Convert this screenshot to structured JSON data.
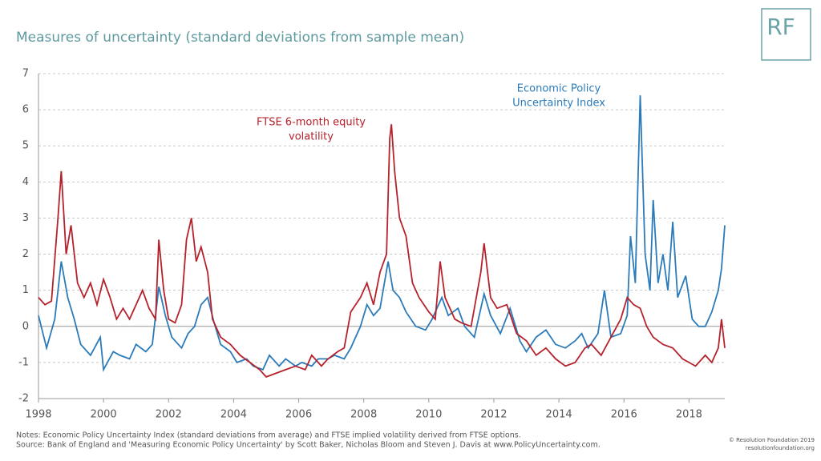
{
  "chart_data": {
    "type": "line",
    "title": "Measures of uncertainty (standard deviations from sample mean)",
    "logo": "RF",
    "xlim": [
      1998,
      2019.1
    ],
    "xticks": [
      1998,
      2000,
      2002,
      2004,
      2006,
      2008,
      2010,
      2012,
      2014,
      2016,
      2018
    ],
    "ylim": [
      -2,
      7
    ],
    "yticks": [
      -2,
      -1,
      0,
      1,
      2,
      3,
      4,
      5,
      6,
      7
    ],
    "grid": true,
    "series": [
      {
        "color": "#2b7bba",
        "x": [
          1998.0,
          1998.25,
          1998.5,
          1998.7,
          1998.9,
          1999.1,
          1999.3,
          1999.6,
          1999.9,
          2000.0,
          2000.3,
          2000.5,
          2000.8,
          2001.0,
          2001.3,
          2001.5,
          2001.7,
          2001.9,
          2002.1,
          2002.4,
          2002.6,
          2002.8,
          2003.0,
          2003.2,
          2003.4,
          2003.6,
          2003.9,
          2004.1,
          2004.4,
          2004.6,
          2004.9,
          2005.1,
          2005.4,
          2005.6,
          2005.9,
          2006.1,
          2006.4,
          2006.6,
          2006.9,
          2007.1,
          2007.4,
          2007.6,
          2007.9,
          2008.1,
          2008.3,
          2008.5,
          2008.75,
          2008.9,
          2009.1,
          2009.3,
          2009.6,
          2009.9,
          2010.1,
          2010.4,
          2010.6,
          2010.9,
          2011.1,
          2011.4,
          2011.7,
          2011.9,
          2012.2,
          2012.5,
          2012.8,
          2013.0,
          2013.3,
          2013.6,
          2013.9,
          2014.2,
          2014.5,
          2014.7,
          2014.9,
          2015.2,
          2015.4,
          2015.6,
          2015.9,
          2016.1,
          2016.2,
          2016.35,
          2016.5,
          2016.65,
          2016.8,
          2016.9,
          2017.05,
          2017.2,
          2017.35,
          2017.5,
          2017.65,
          2017.9,
          2018.1,
          2018.3,
          2018.5,
          2018.7,
          2018.9,
          2019.0,
          2019.1
        ],
        "values": [
          0.3,
          -0.6,
          0.2,
          1.8,
          0.8,
          0.2,
          -0.5,
          -0.8,
          -0.3,
          -1.2,
          -0.7,
          -0.8,
          -0.9,
          -0.5,
          -0.7,
          -0.5,
          1.1,
          0.3,
          -0.3,
          -0.6,
          -0.2,
          0.0,
          0.6,
          0.8,
          0.1,
          -0.5,
          -0.7,
          -1.0,
          -0.9,
          -1.1,
          -1.2,
          -0.8,
          -1.1,
          -0.9,
          -1.1,
          -1.0,
          -1.1,
          -0.9,
          -0.9,
          -0.8,
          -0.9,
          -0.6,
          0.0,
          0.6,
          0.3,
          0.5,
          1.8,
          1.0,
          0.8,
          0.4,
          0.0,
          -0.1,
          0.2,
          0.8,
          0.3,
          0.5,
          0.0,
          -0.3,
          0.9,
          0.3,
          -0.2,
          0.5,
          -0.4,
          -0.7,
          -0.3,
          -0.1,
          -0.5,
          -0.6,
          -0.4,
          -0.2,
          -0.6,
          -0.2,
          1.0,
          -0.3,
          -0.2,
          0.3,
          2.5,
          1.2,
          6.4,
          2.0,
          1.0,
          3.5,
          1.2,
          2.0,
          1.0,
          2.9,
          0.8,
          1.4,
          0.2,
          0.0,
          0.0,
          0.4,
          1.0,
          1.6,
          2.8
        ]
      },
      {
        "color": "#b5222c",
        "x": [
          1998.0,
          1998.2,
          1998.4,
          1998.6,
          1998.7,
          1998.85,
          1999.0,
          1999.2,
          1999.4,
          1999.6,
          1999.8,
          2000.0,
          2000.2,
          2000.4,
          2000.6,
          2000.8,
          2001.0,
          2001.2,
          2001.4,
          2001.6,
          2001.7,
          2001.85,
          2002.0,
          2002.2,
          2002.4,
          2002.55,
          2002.7,
          2002.85,
          2003.0,
          2003.2,
          2003.35,
          2003.6,
          2003.9,
          2004.2,
          2004.5,
          2004.8,
          2005.0,
          2005.3,
          2005.6,
          2005.9,
          2006.2,
          2006.4,
          2006.7,
          2006.9,
          2007.2,
          2007.4,
          2007.6,
          2007.9,
          2008.1,
          2008.3,
          2008.5,
          2008.7,
          2008.8,
          2008.85,
          2008.95,
          2009.1,
          2009.3,
          2009.5,
          2009.7,
          2010.0,
          2010.2,
          2010.35,
          2010.5,
          2010.8,
          2011.0,
          2011.3,
          2011.6,
          2011.7,
          2011.9,
          2012.1,
          2012.4,
          2012.7,
          2013.0,
          2013.3,
          2013.6,
          2013.9,
          2014.2,
          2014.5,
          2014.8,
          2015.0,
          2015.3,
          2015.6,
          2015.9,
          2016.1,
          2016.3,
          2016.5,
          2016.7,
          2016.9,
          2017.2,
          2017.5,
          2017.8,
          2018.0,
          2018.2,
          2018.5,
          2018.7,
          2018.9,
          2019.0,
          2019.1
        ],
        "values": [
          0.8,
          0.6,
          0.7,
          3.0,
          4.3,
          2.0,
          2.8,
          1.2,
          0.8,
          1.2,
          0.6,
          1.3,
          0.8,
          0.2,
          0.5,
          0.2,
          0.6,
          1.0,
          0.5,
          0.2,
          2.4,
          1.0,
          0.2,
          0.1,
          0.6,
          2.4,
          3.0,
          1.8,
          2.2,
          1.5,
          0.2,
          -0.3,
          -0.5,
          -0.8,
          -1.0,
          -1.2,
          -1.4,
          -1.3,
          -1.2,
          -1.1,
          -1.2,
          -0.8,
          -1.1,
          -0.9,
          -0.7,
          -0.6,
          0.4,
          0.8,
          1.2,
          0.6,
          1.5,
          2.0,
          5.2,
          5.6,
          4.3,
          3.0,
          2.5,
          1.2,
          0.8,
          0.4,
          0.2,
          1.8,
          0.8,
          0.2,
          0.1,
          0.0,
          1.5,
          2.3,
          0.8,
          0.5,
          0.6,
          -0.2,
          -0.4,
          -0.8,
          -0.6,
          -0.9,
          -1.1,
          -1.0,
          -0.6,
          -0.5,
          -0.8,
          -0.3,
          0.2,
          0.8,
          0.6,
          0.5,
          0.0,
          -0.3,
          -0.5,
          -0.6,
          -0.9,
          -1.0,
          -1.1,
          -0.8,
          -1.0,
          -0.6,
          0.2,
          -0.6
        ]
      }
    ],
    "annotations": [
      {
        "lines": [
          "FTSE 6-month equity",
          "volatility"
        ],
        "color": "#b5222c"
      },
      {
        "lines": [
          "Economic Policy",
          "Uncertainty Index"
        ],
        "color": "#2b7bba"
      }
    ],
    "notes": [
      "Notes: Economic Policy Uncertainty Index (standard deviations from average) and FTSE implied volatility derived from FTSE options.",
      "Source: Bank of England and 'Measuring Economic Policy Uncertainty' by Scott Baker, Nicholas Bloom and Steven J. Davis at www.PolicyUncertainty.com."
    ],
    "credits": [
      "© Resolution Foundation 2019",
      "resolutionfoundation.org"
    ]
  }
}
